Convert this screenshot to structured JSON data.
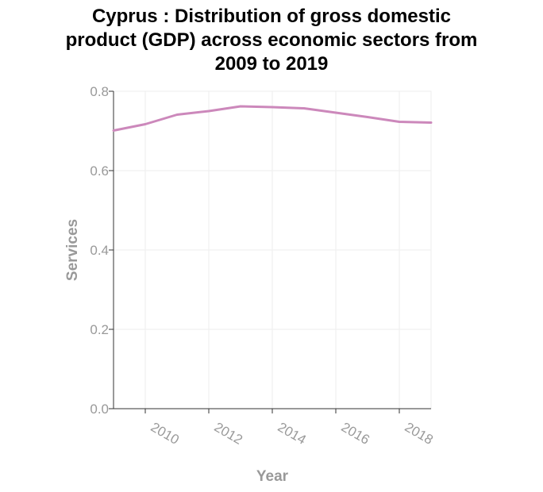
{
  "chart_data": {
    "type": "line",
    "title": "Cyprus : Distribution of gross domestic\nproduct (GDP) across economic sectors from\n2009 to 2019",
    "xlabel": "Year",
    "ylabel": "Services",
    "xlim": [
      2009,
      2019
    ],
    "ylim": [
      0,
      0.8
    ],
    "x_ticks": [
      2010,
      2012,
      2014,
      2016,
      2018
    ],
    "y_ticks": [
      0.0,
      0.2,
      0.4,
      0.6,
      0.8
    ],
    "y_tick_labels": [
      "0.0",
      "0.2",
      "0.4",
      "0.6",
      "0.8"
    ],
    "grid": true,
    "series": [
      {
        "color": "#cc88bb",
        "x": [
          2009,
          2010,
          2011,
          2012,
          2013,
          2014,
          2015,
          2016,
          2017,
          2018,
          2019
        ],
        "values": [
          0.701,
          0.717,
          0.741,
          0.75,
          0.762,
          0.76,
          0.757,
          0.746,
          0.735,
          0.723,
          0.721
        ]
      }
    ]
  }
}
